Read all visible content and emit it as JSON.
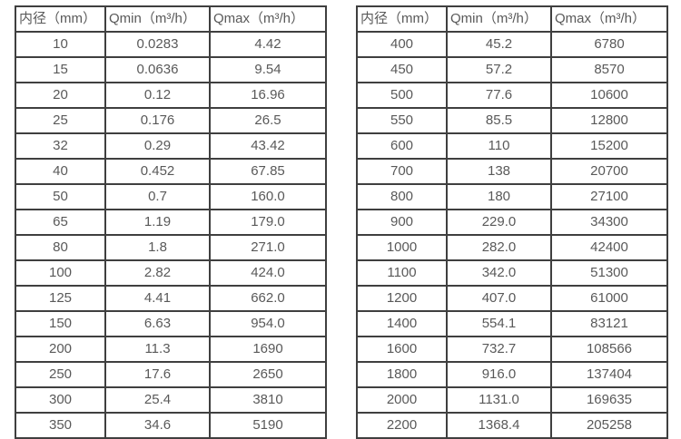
{
  "colors": {
    "background": "#ffffff",
    "border": "#3f3f3f",
    "text": "#595959"
  },
  "tables": [
    {
      "name": "small-diameter-table",
      "headers": [
        "内径（mm）",
        "Qmin（m³/h）",
        "Qmax（m³/h）"
      ],
      "rows": [
        [
          "10",
          "0.0283",
          "4.42"
        ],
        [
          "15",
          "0.0636",
          "9.54"
        ],
        [
          "20",
          "0.12",
          "16.96"
        ],
        [
          "25",
          "0.176",
          "26.5"
        ],
        [
          "32",
          "0.29",
          "43.42"
        ],
        [
          "40",
          "0.452",
          "67.85"
        ],
        [
          "50",
          "0.7",
          "160.0"
        ],
        [
          "65",
          "1.19",
          "179.0"
        ],
        [
          "80",
          "1.8",
          "271.0"
        ],
        [
          "100",
          "2.82",
          "424.0"
        ],
        [
          "125",
          "4.41",
          "662.0"
        ],
        [
          "150",
          "6.63",
          "954.0"
        ],
        [
          "200",
          "11.3",
          "1690"
        ],
        [
          "250",
          "17.6",
          "2650"
        ],
        [
          "300",
          "25.4",
          "3810"
        ],
        [
          "350",
          "34.6",
          "5190"
        ]
      ]
    },
    {
      "name": "large-diameter-table",
      "headers": [
        "内径（mm）",
        "Qmin（m³/h）",
        "Qmax（m³/h）"
      ],
      "rows": [
        [
          "400",
          "45.2",
          "6780"
        ],
        [
          "450",
          "57.2",
          "8570"
        ],
        [
          "500",
          "77.6",
          "10600"
        ],
        [
          "550",
          "85.5",
          "12800"
        ],
        [
          "600",
          "110",
          "15200"
        ],
        [
          "700",
          "138",
          "20700"
        ],
        [
          "800",
          "180",
          "27100"
        ],
        [
          "900",
          "229.0",
          "34300"
        ],
        [
          "1000",
          "282.0",
          "42400"
        ],
        [
          "1100",
          "342.0",
          "51300"
        ],
        [
          "1200",
          "407.0",
          "61000"
        ],
        [
          "1400",
          "554.1",
          "83121"
        ],
        [
          "1600",
          "732.7",
          "108566"
        ],
        [
          "1800",
          "916.0",
          "137404"
        ],
        [
          "2000",
          "1131.0",
          "169635"
        ],
        [
          "2200",
          "1368.4",
          "205258"
        ]
      ]
    }
  ]
}
